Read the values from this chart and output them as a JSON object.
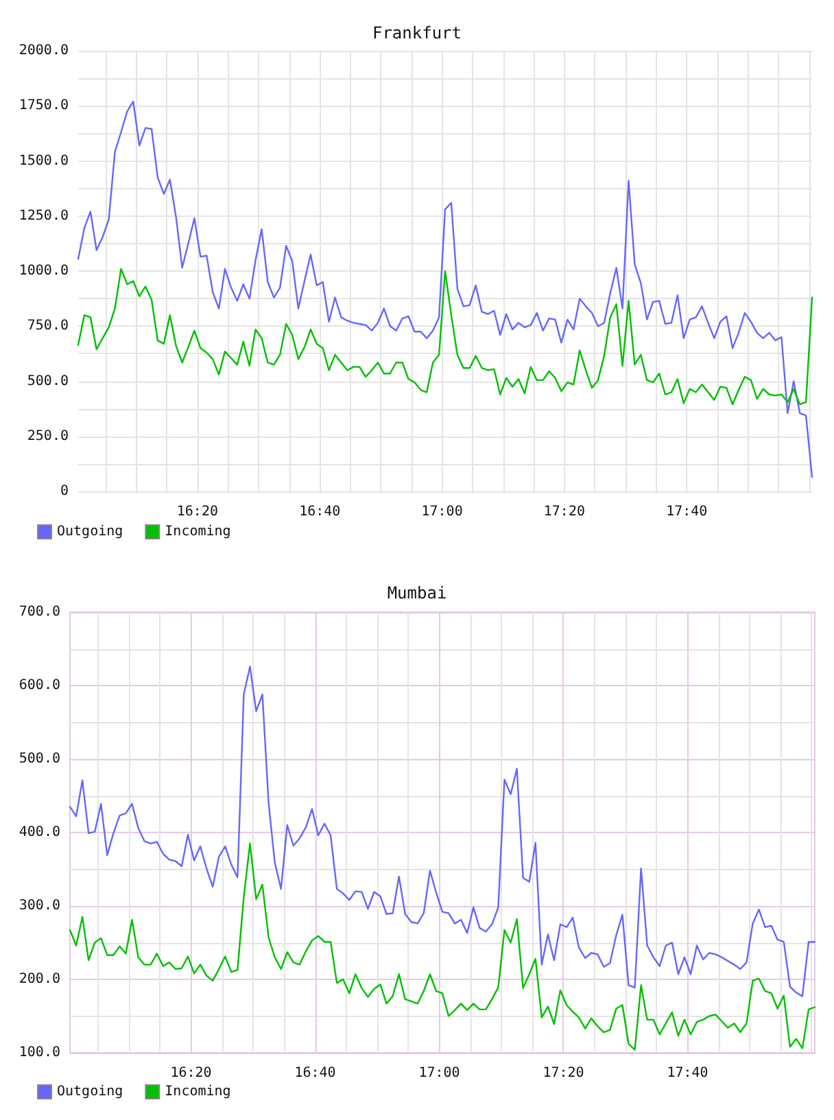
{
  "chart_data": [
    {
      "type": "line",
      "title": "Frankfurt",
      "x": [
        16.0083,
        16.025,
        16.0417,
        16.0583,
        16.075,
        16.0917,
        16.1083,
        16.125,
        16.1417,
        16.1583,
        16.175,
        16.1917,
        16.2083,
        16.225,
        16.2417,
        16.2583,
        16.275,
        16.2917,
        16.3083,
        16.325,
        16.3417,
        16.3583,
        16.375,
        16.3917,
        16.4083,
        16.425,
        16.4417,
        16.4583,
        16.475,
        16.4917,
        16.5083,
        16.525,
        16.5417,
        16.5583,
        16.575,
        16.5917,
        16.6083,
        16.625,
        16.6417,
        16.6583,
        16.675,
        16.6917,
        16.7083,
        16.725,
        16.7417,
        16.7583,
        16.775,
        16.7917,
        16.8083,
        16.825,
        16.8417,
        16.8583,
        16.875,
        16.8917,
        16.9083,
        16.925,
        16.9417,
        16.9583,
        16.975,
        16.9917,
        17.0083,
        17.025,
        17.0417,
        17.0583,
        17.075,
        17.0917,
        17.1083,
        17.125,
        17.1417,
        17.1583,
        17.175,
        17.1917,
        17.2083,
        17.225,
        17.2417,
        17.2583,
        17.275,
        17.2917,
        17.3083,
        17.325,
        17.3417,
        17.3583,
        17.375,
        17.3917,
        17.4083,
        17.425,
        17.4417,
        17.4583,
        17.475,
        17.4917,
        17.5083,
        17.525,
        17.5417,
        17.5583,
        17.575,
        17.5917,
        17.6083,
        17.625,
        17.6417,
        17.6583,
        17.675,
        17.6917,
        17.7083,
        17.725,
        17.7417,
        17.7583,
        17.775,
        17.7917,
        17.8083,
        17.825,
        17.8417,
        17.8583,
        17.875,
        17.8917,
        17.9083,
        17.925,
        17.9417,
        17.9583,
        17.975,
        17.9917,
        18.0083
      ],
      "xlim": [
        16.0083,
        18.0083
      ],
      "xticks": [
        {
          "value": 16.0833,
          "label": null
        },
        {
          "value": 16.1667,
          "label": null
        },
        {
          "value": 16.25,
          "label": null
        },
        {
          "value": 16.3333,
          "label": "16:20"
        },
        {
          "value": 16.4167,
          "label": null
        },
        {
          "value": 16.5,
          "label": null
        },
        {
          "value": 16.5833,
          "label": null
        },
        {
          "value": 16.6667,
          "label": "16:40"
        },
        {
          "value": 16.75,
          "label": null
        },
        {
          "value": 16.8333,
          "label": null
        },
        {
          "value": 16.9167,
          "label": null
        },
        {
          "value": 17,
          "label": "17:00"
        },
        {
          "value": 17.0833,
          "label": null
        },
        {
          "value": 17.1667,
          "label": null
        },
        {
          "value": 17.25,
          "label": null
        },
        {
          "value": 17.3333,
          "label": "17:20"
        },
        {
          "value": 17.4167,
          "label": null
        },
        {
          "value": 17.5,
          "label": null
        },
        {
          "value": 17.5833,
          "label": null
        },
        {
          "value": 17.6667,
          "label": "17:40"
        },
        {
          "value": 17.75,
          "label": null
        },
        {
          "value": 17.8333,
          "label": null
        },
        {
          "value": 17.9167,
          "label": null
        },
        {
          "value": 18,
          "label": null
        }
      ],
      "ylim": [
        0,
        2000
      ],
      "yticks": [
        0,
        {
          "value": 125,
          "label": null
        },
        {
          "value": 250,
          "label": "250.0"
        },
        {
          "value": 375,
          "label": null
        },
        {
          "value": 500,
          "label": "500.0"
        },
        {
          "value": 625,
          "label": null
        },
        {
          "value": 750,
          "label": "750.0"
        },
        {
          "value": 875,
          "label": null
        },
        {
          "value": 1000,
          "label": "1000.0"
        },
        {
          "value": 1125,
          "label": null
        },
        {
          "value": 1250,
          "label": "1250.0"
        },
        {
          "value": 1375,
          "label": null
        },
        {
          "value": 1500,
          "label": "1500.0"
        },
        {
          "value": 1625,
          "label": null
        },
        {
          "value": 1750,
          "label": "1750.0"
        },
        {
          "value": 1875,
          "label": null
        },
        {
          "value": 2000,
          "label": "2000.0"
        }
      ],
      "grid": true,
      "legend": "bottom left",
      "marker": "none",
      "line_style": "solid",
      "series": [
        {
          "name": "Outgoing",
          "color": "#6666ff",
          "values": [
            1055,
            1195,
            1270,
            1095,
            1155,
            1235,
            1540,
            1630,
            1725,
            1770,
            1570,
            1650,
            1645,
            1425,
            1350,
            1415,
            1245,
            1015,
            1125,
            1240,
            1065,
            1070,
            905,
            830,
            1010,
            925,
            865,
            940,
            875,
            1050,
            1190,
            950,
            880,
            925,
            1115,
            1045,
            830,
            955,
            1075,
            935,
            950,
            770,
            880,
            790,
            775,
            765,
            760,
            755,
            730,
            765,
            830,
            750,
            730,
            785,
            795,
            725,
            725,
            695,
            730,
            790,
            1280,
            1310,
            920,
            840,
            845,
            935,
            815,
            805,
            820,
            710,
            805,
            735,
            765,
            745,
            755,
            810,
            730,
            785,
            780,
            675,
            780,
            735,
            875,
            840,
            810,
            750,
            765,
            900,
            1015,
            830,
            1410,
            1030,
            945,
            780,
            860,
            865,
            760,
            765,
            890,
            695,
            780,
            790,
            840,
            765,
            695,
            770,
            795,
            650,
            720,
            810,
            770,
            720,
            695,
            720,
            685,
            700,
            355,
            500,
            355,
            345,
            65
          ]
        },
        {
          "name": "Incoming",
          "color": "#00c000",
          "values": [
            665,
            800,
            790,
            645,
            695,
            745,
            830,
            1010,
            940,
            955,
            885,
            930,
            870,
            685,
            670,
            800,
            660,
            585,
            655,
            730,
            650,
            630,
            600,
            530,
            635,
            605,
            575,
            680,
            570,
            735,
            695,
            585,
            575,
            620,
            760,
            710,
            600,
            655,
            735,
            670,
            650,
            550,
            620,
            585,
            550,
            565,
            565,
            520,
            550,
            585,
            535,
            535,
            585,
            585,
            510,
            495,
            460,
            450,
            585,
            620,
            1000,
            800,
            620,
            560,
            560,
            615,
            560,
            550,
            555,
            440,
            515,
            475,
            510,
            445,
            565,
            505,
            505,
            545,
            515,
            455,
            495,
            485,
            640,
            550,
            470,
            505,
            615,
            790,
            850,
            570,
            865,
            575,
            620,
            505,
            495,
            535,
            440,
            450,
            510,
            400,
            465,
            450,
            485,
            450,
            415,
            475,
            470,
            395,
            460,
            520,
            505,
            420,
            465,
            440,
            435,
            440,
            405,
            465,
            395,
            405,
            880
          ]
        }
      ]
    },
    {
      "type": "line",
      "title": "Mumbai",
      "x": [
        16.0083,
        16.025,
        16.0417,
        16.0583,
        16.075,
        16.0917,
        16.1083,
        16.125,
        16.1417,
        16.1583,
        16.175,
        16.1917,
        16.2083,
        16.225,
        16.2417,
        16.2583,
        16.275,
        16.2917,
        16.3083,
        16.325,
        16.3417,
        16.3583,
        16.375,
        16.3917,
        16.4083,
        16.425,
        16.4417,
        16.4583,
        16.475,
        16.4917,
        16.5083,
        16.525,
        16.5417,
        16.5583,
        16.575,
        16.5917,
        16.6083,
        16.625,
        16.6417,
        16.6583,
        16.675,
        16.6917,
        16.7083,
        16.725,
        16.7417,
        16.7583,
        16.775,
        16.7917,
        16.8083,
        16.825,
        16.8417,
        16.8583,
        16.875,
        16.8917,
        16.9083,
        16.925,
        16.9417,
        16.9583,
        16.975,
        16.9917,
        17.0083,
        17.025,
        17.0417,
        17.0583,
        17.075,
        17.0917,
        17.1083,
        17.125,
        17.1417,
        17.1583,
        17.175,
        17.1917,
        17.2083,
        17.225,
        17.2417,
        17.2583,
        17.275,
        17.2917,
        17.3083,
        17.325,
        17.3417,
        17.3583,
        17.375,
        17.3917,
        17.4083,
        17.425,
        17.4417,
        17.4583,
        17.475,
        17.4917,
        17.5083,
        17.525,
        17.5417,
        17.5583,
        17.575,
        17.5917,
        17.6083,
        17.625,
        17.6417,
        17.6583,
        17.675,
        17.6917,
        17.7083,
        17.725,
        17.7417,
        17.7583,
        17.775,
        17.7917,
        17.8083,
        17.825,
        17.8417,
        17.8583,
        17.875,
        17.8917,
        17.9083,
        17.925,
        17.9417,
        17.9583,
        17.975,
        17.9917,
        18.0083
      ],
      "xlim": [
        16.0083,
        18.0083
      ],
      "xticks": [
        {
          "value": 16.0833,
          "label": null
        },
        {
          "value": 16.1667,
          "label": null
        },
        {
          "value": 16.25,
          "label": null
        },
        {
          "value": 16.3333,
          "label": "16:20"
        },
        {
          "value": 16.4167,
          "label": null
        },
        {
          "value": 16.5,
          "label": null
        },
        {
          "value": 16.5833,
          "label": null
        },
        {
          "value": 16.6667,
          "label": "16:40"
        },
        {
          "value": 16.75,
          "label": null
        },
        {
          "value": 16.8333,
          "label": null
        },
        {
          "value": 16.9167,
          "label": null
        },
        {
          "value": 17,
          "label": "17:00"
        },
        {
          "value": 17.0833,
          "label": null
        },
        {
          "value": 17.1667,
          "label": null
        },
        {
          "value": 17.25,
          "label": null
        },
        {
          "value": 17.3333,
          "label": "17:20"
        },
        {
          "value": 17.4167,
          "label": null
        },
        {
          "value": 17.5,
          "label": null
        },
        {
          "value": 17.5833,
          "label": null
        },
        {
          "value": 17.6667,
          "label": "17:40"
        },
        {
          "value": 17.75,
          "label": null
        },
        {
          "value": 17.8333,
          "label": null
        },
        {
          "value": 17.9167,
          "label": null
        },
        {
          "value": 18,
          "label": null
        }
      ],
      "ylim": [
        100,
        700
      ],
      "yticks": [
        {
          "value": 100,
          "label": "100.0"
        },
        {
          "value": 150,
          "label": null
        },
        {
          "value": 200,
          "label": "200.0"
        },
        {
          "value": 250,
          "label": null
        },
        {
          "value": 300,
          "label": "300.0"
        },
        {
          "value": 350,
          "label": null
        },
        {
          "value": 400,
          "label": "400.0"
        },
        {
          "value": 450,
          "label": null
        },
        {
          "value": 500,
          "label": "500.0"
        },
        {
          "value": 550,
          "label": null
        },
        {
          "value": 600,
          "label": "600.0"
        },
        {
          "value": 650,
          "label": null
        },
        {
          "value": 700,
          "label": "700.0"
        }
      ],
      "grid": true,
      "legend": "bottom left",
      "marker": "none",
      "line_style": "solid",
      "series": [
        {
          "name": "Outgoing",
          "color": "#6666ff",
          "values": [
            435,
            422,
            471,
            399,
            401,
            439,
            369,
            399,
            423,
            426,
            439,
            406,
            388,
            385,
            387,
            371,
            363,
            361,
            354,
            397,
            362,
            381,
            351,
            326,
            367,
            381,
            356,
            339,
            588,
            626,
            565,
            588,
            440,
            359,
            323,
            410,
            382,
            392,
            407,
            432,
            396,
            412,
            396,
            323,
            317,
            308,
            320,
            319,
            296,
            319,
            313,
            289,
            290,
            340,
            289,
            278,
            276,
            290,
            348,
            318,
            292,
            290,
            276,
            281,
            263,
            298,
            270,
            265,
            275,
            298,
            472,
            452,
            487,
            338,
            333,
            386,
            220,
            261,
            226,
            275,
            271,
            284,
            243,
            229,
            236,
            234,
            217,
            222,
            260,
            288,
            192,
            189,
            351,
            246,
            230,
            218,
            246,
            250,
            207,
            230,
            207,
            246,
            227,
            236,
            234,
            230,
            225,
            220,
            214,
            223,
            276,
            295,
            271,
            273,
            254,
            251,
            190,
            182,
            177,
            251,
            251
          ]
        },
        {
          "name": "Incoming",
          "color": "#00c000",
          "values": [
            267,
            246,
            285,
            226,
            250,
            256,
            233,
            233,
            245,
            235,
            281,
            230,
            220,
            220,
            235,
            218,
            223,
            214,
            215,
            231,
            208,
            220,
            205,
            198,
            214,
            231,
            210,
            213,
            312,
            385,
            309,
            329,
            257,
            230,
            214,
            237,
            223,
            220,
            238,
            253,
            259,
            251,
            251,
            195,
            200,
            181,
            207,
            188,
            176,
            187,
            193,
            167,
            177,
            207,
            173,
            170,
            167,
            184,
            207,
            184,
            181,
            150,
            158,
            167,
            158,
            167,
            159,
            159,
            173,
            189,
            267,
            250,
            282,
            188,
            207,
            228,
            148,
            163,
            139,
            185,
            165,
            156,
            148,
            133,
            147,
            136,
            128,
            131,
            160,
            165,
            112,
            104,
            192,
            145,
            145,
            125,
            140,
            155,
            123,
            145,
            125,
            142,
            145,
            150,
            152,
            143,
            134,
            140,
            128,
            140,
            198,
            201,
            184,
            181,
            160,
            178,
            108,
            119,
            106,
            159,
            162
          ]
        }
      ]
    }
  ]
}
